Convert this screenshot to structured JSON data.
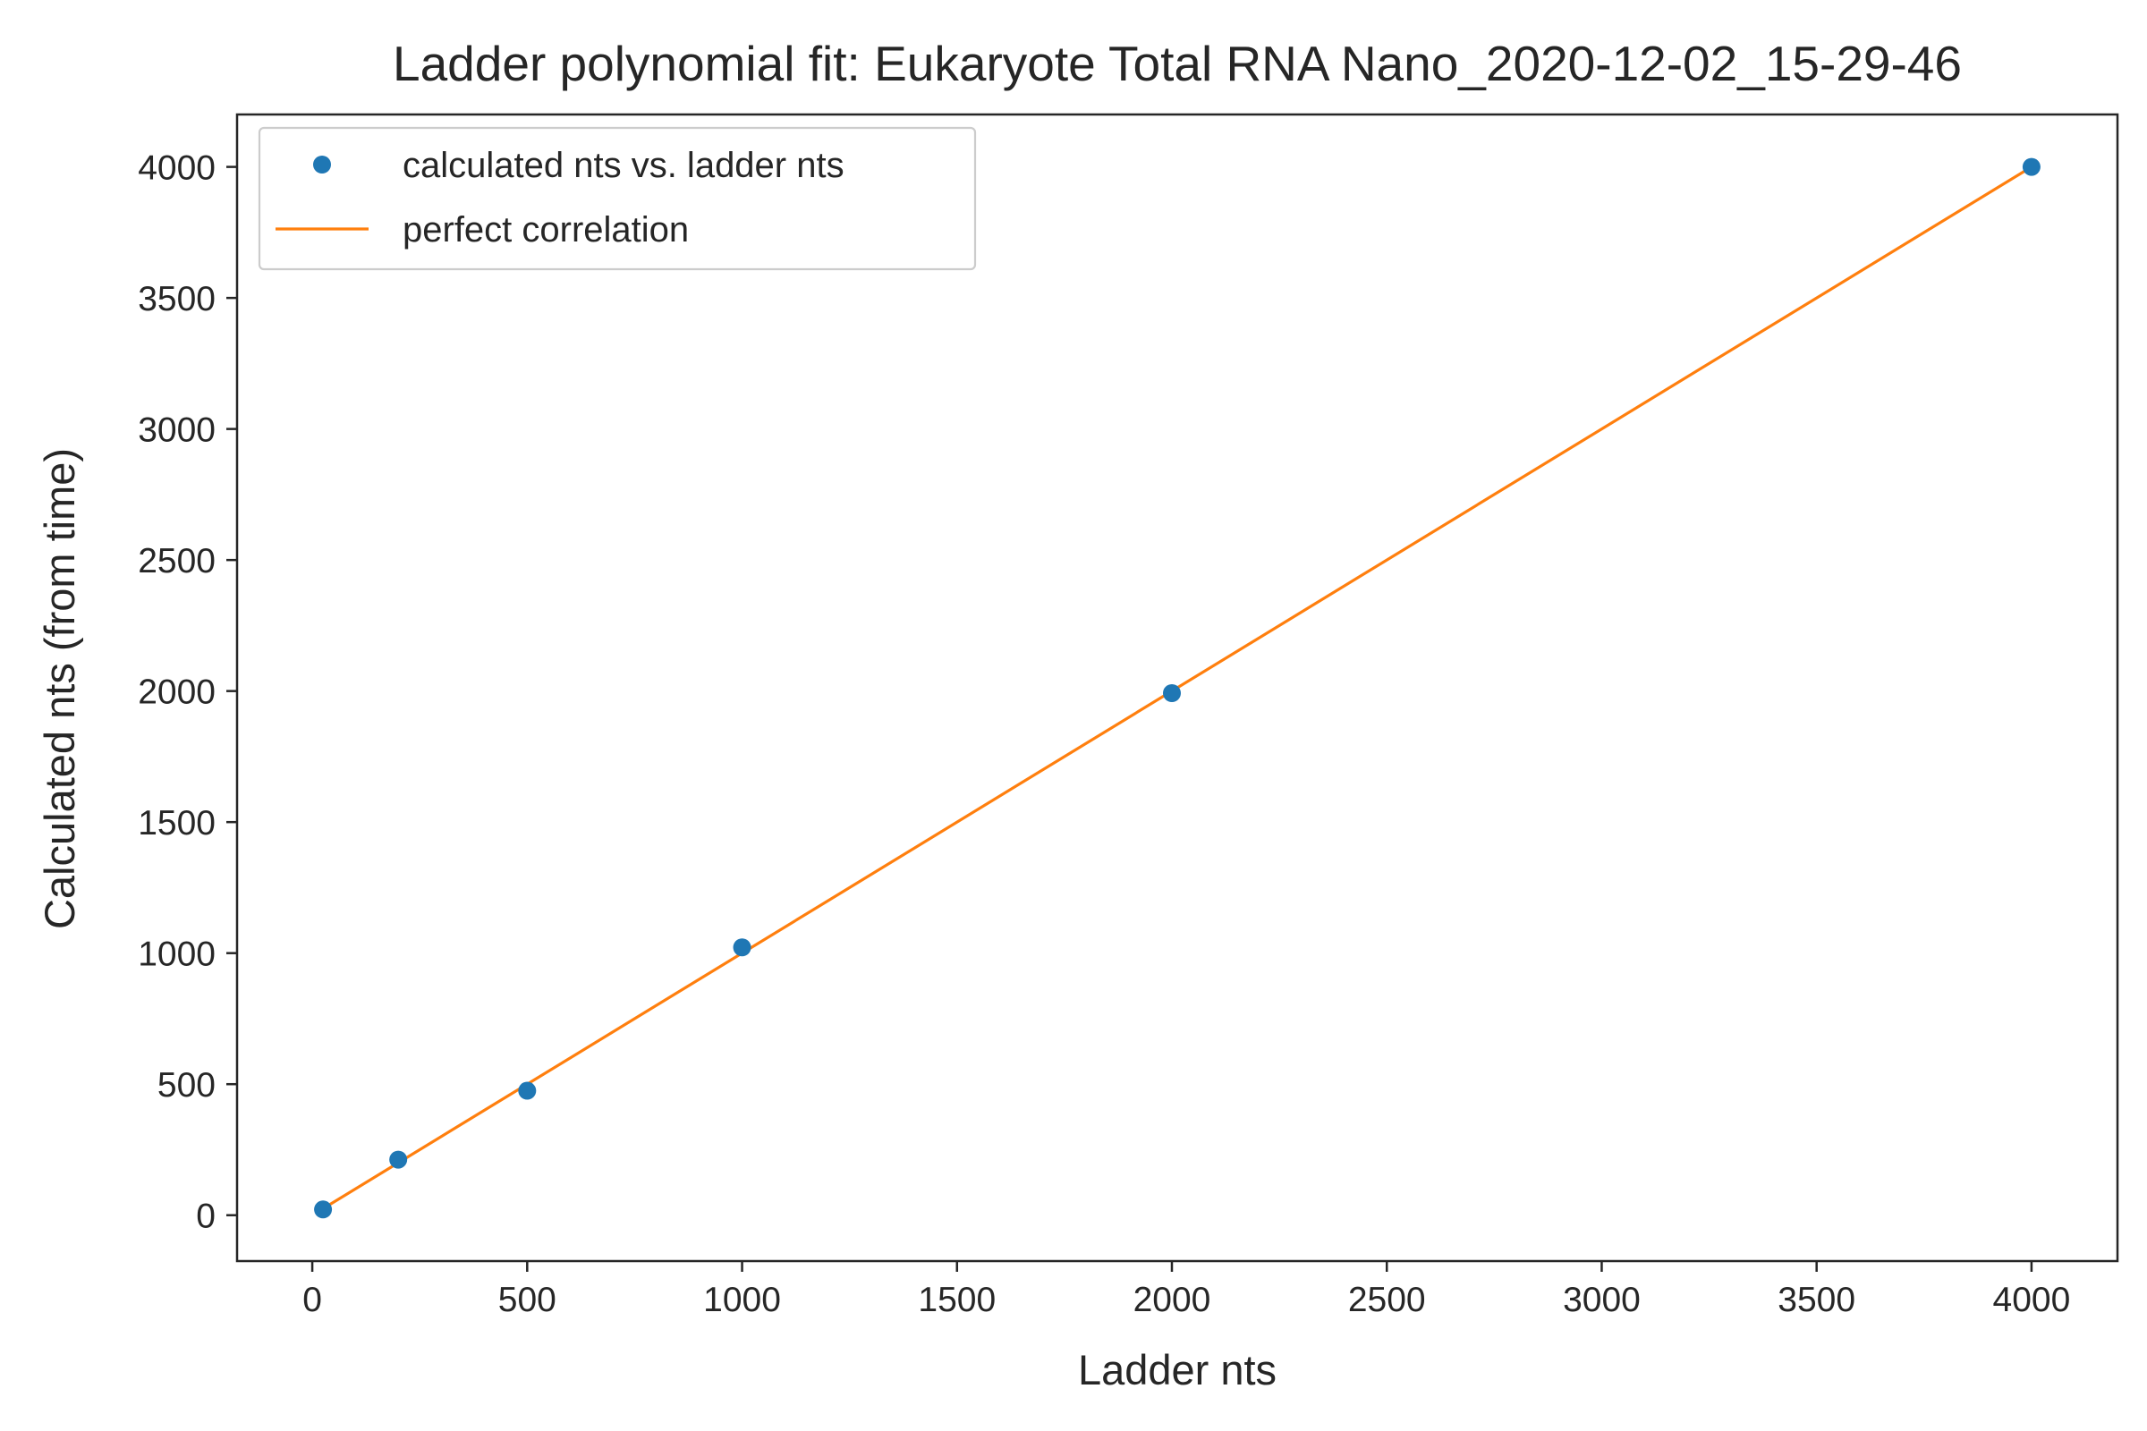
{
  "chart_data": {
    "type": "scatter",
    "title": "Ladder polynomial fit: Eukaryote Total RNA Nano_2020-12-02_15-29-46",
    "xlabel": "Ladder nts",
    "ylabel": "Calculated nts (from time)",
    "xlim": [
      -175,
      4200
    ],
    "ylim": [
      -175,
      4200
    ],
    "xticks": [
      0,
      500,
      1000,
      1500,
      2000,
      2500,
      3000,
      3500,
      4000
    ],
    "yticks": [
      0,
      500,
      1000,
      1500,
      2000,
      2500,
      3000,
      3500,
      4000
    ],
    "grid": false,
    "legend_position": "top-left",
    "series": [
      {
        "name": "calculated nts vs. ladder nts",
        "kind": "scatter",
        "color": "#1f77b4",
        "x": [
          25,
          200,
          500,
          1000,
          2000,
          4000
        ],
        "y": [
          22,
          212,
          475,
          1022,
          1992,
          4000
        ]
      },
      {
        "name": "perfect correlation",
        "kind": "line",
        "color": "#ff7f0e",
        "x": [
          25,
          4000
        ],
        "y": [
          25,
          4000
        ]
      }
    ]
  }
}
